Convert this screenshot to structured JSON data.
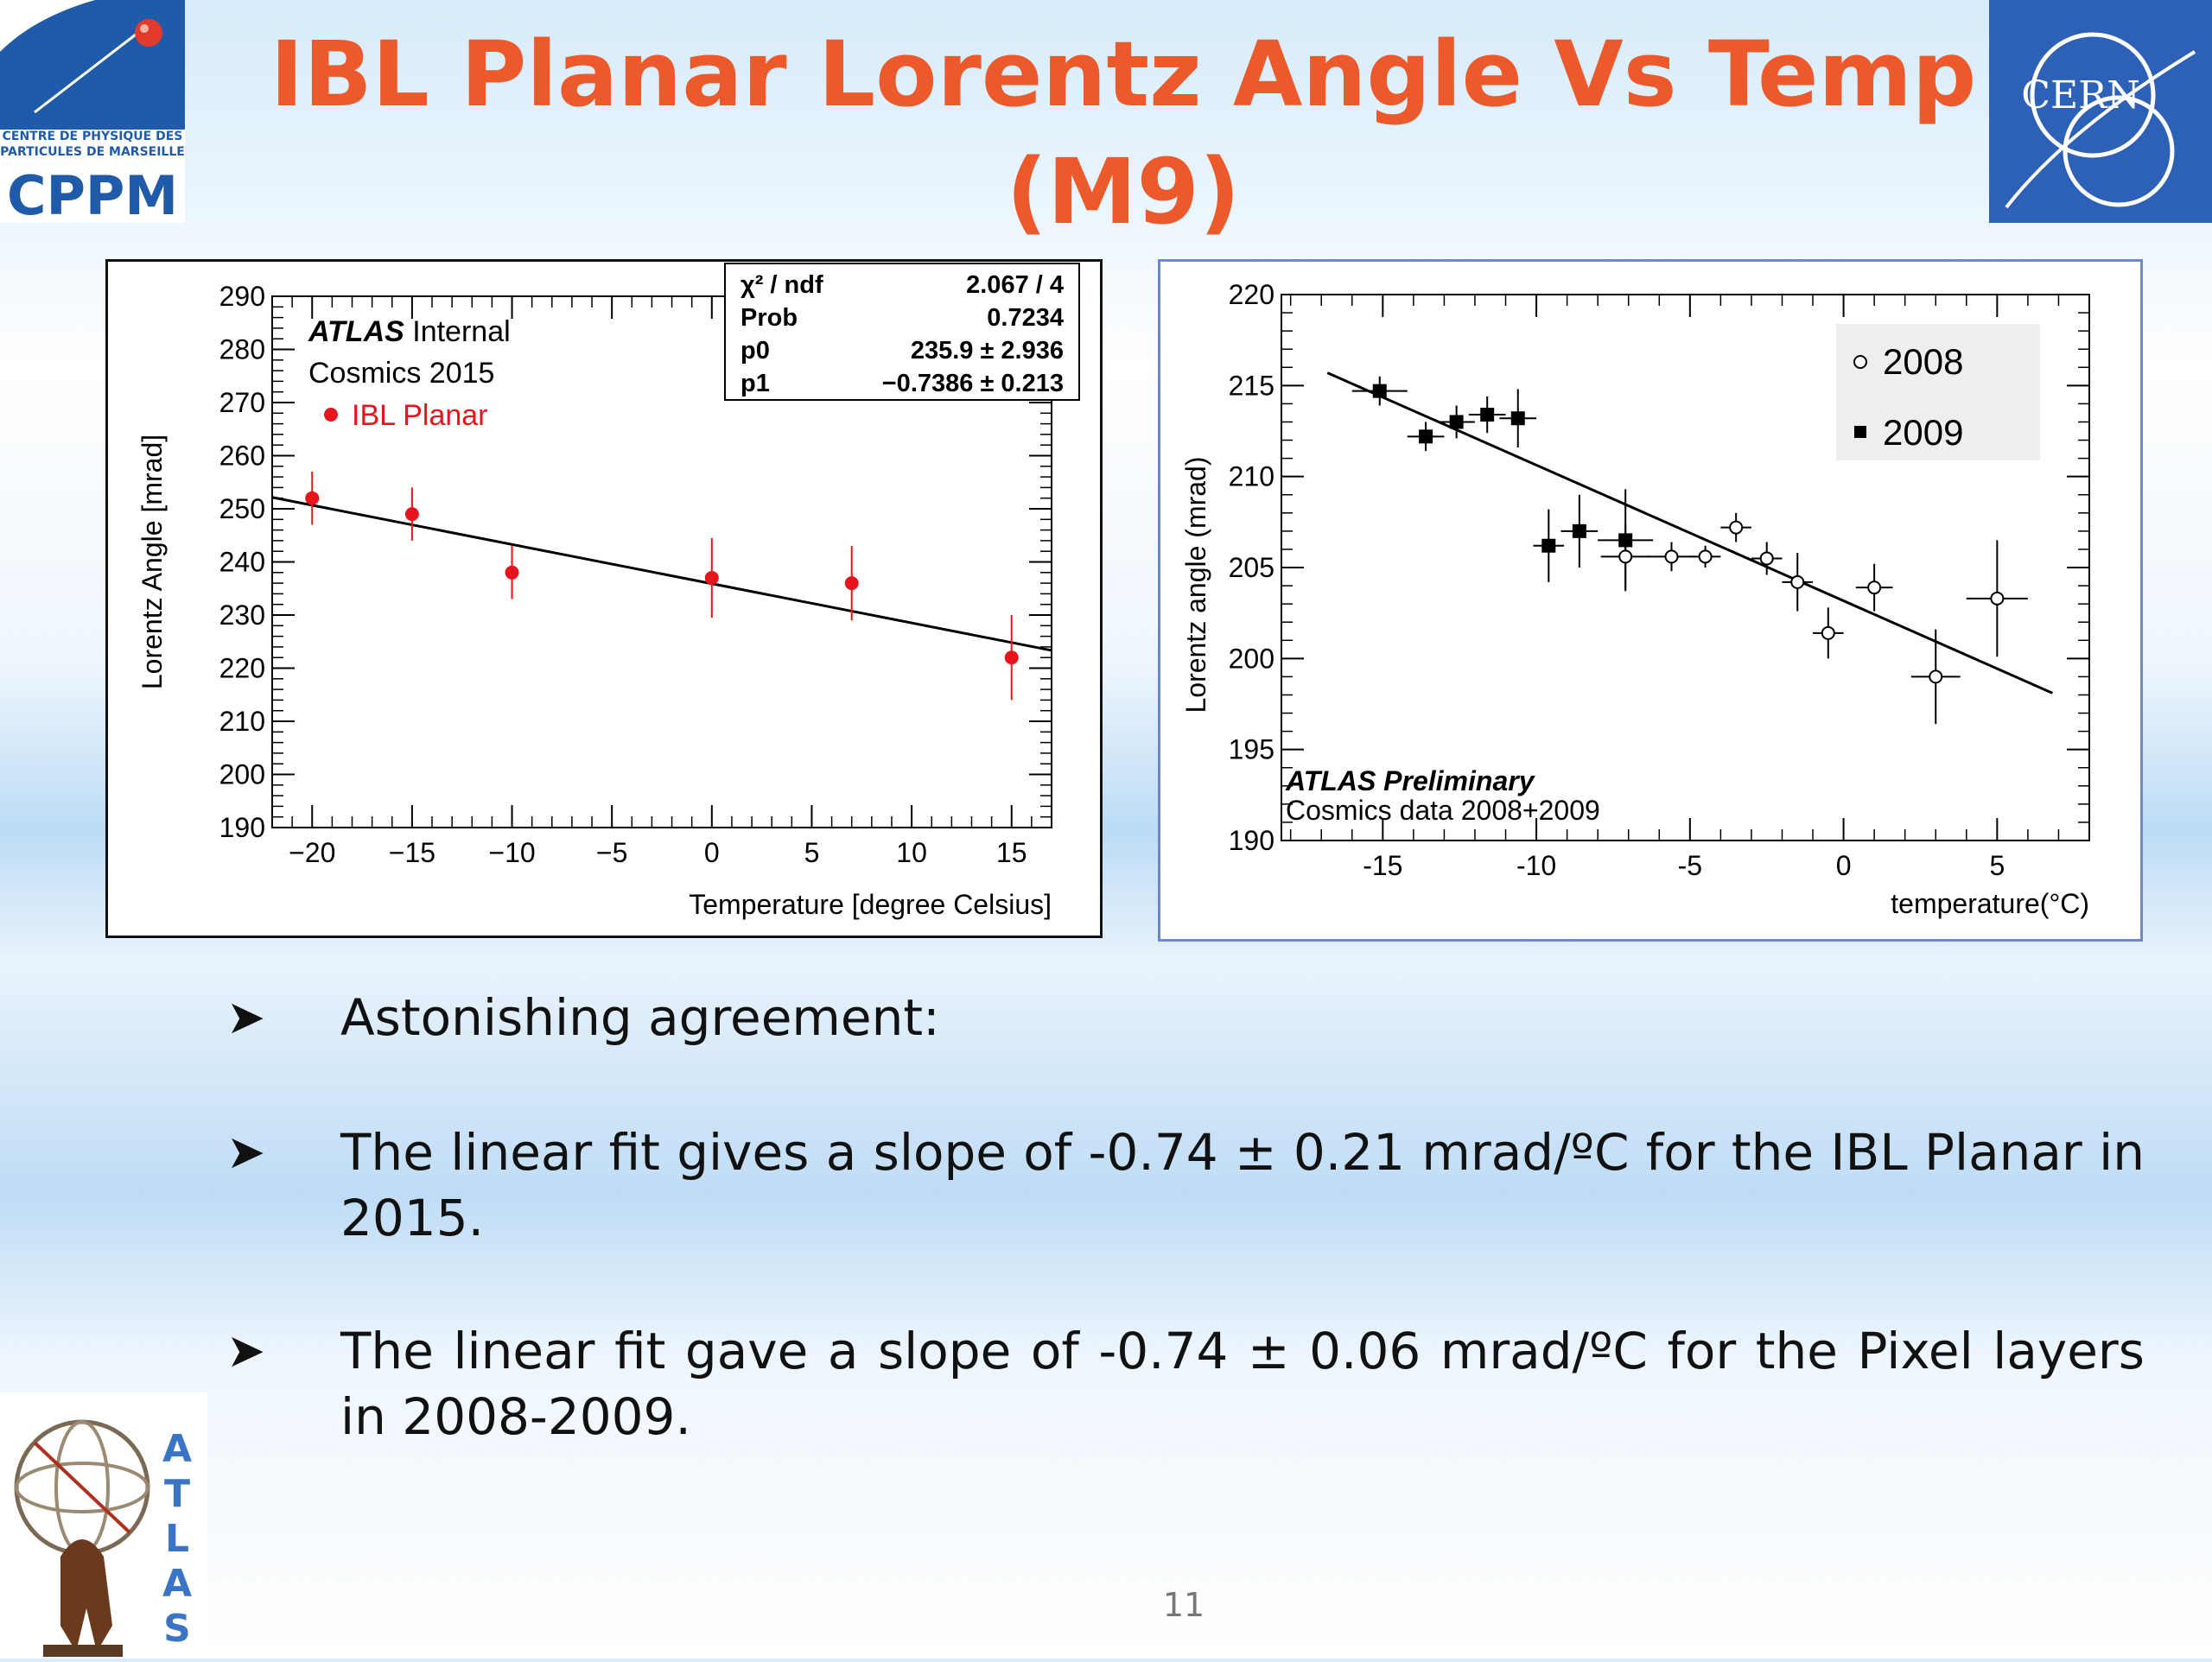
{
  "slide": {
    "title": "IBL Planar Lorentz Angle Vs Temp (M9)",
    "page_number": "11"
  },
  "logos": {
    "cppm_line1": "CENTRE DE PHYSIQUE DES",
    "cppm_line2": "PARTICULES DE MARSEILLE",
    "cppm_name": "CPPM",
    "cern_name": "CERN",
    "atlas_name": "ATLAS",
    "colors": {
      "cppm_blue": "#1f5ba8",
      "cern_blue": "#2d60b7",
      "atlas_blue": "#3b74c4",
      "title_orange": "#ec5a2c"
    }
  },
  "bullets": [
    "Astonishing agreement:",
    "The linear fit gives a slope of -0.74 ± 0.21 mrad/ºC for the IBL Planar in 2015.",
    "The linear fit gave a slope of -0.74 ± 0.06 mrad/ºC for the Pixel layers in 2008-2009."
  ],
  "chart_data": [
    {
      "type": "scatter",
      "xlabel": "Temperature [degree Celsius]",
      "ylabel": "Lorentz Angle [mrad]",
      "xlim": [
        -22,
        17
      ],
      "ylim": [
        190,
        290
      ],
      "xticks": [
        -20,
        -15,
        -10,
        -5,
        0,
        5,
        10,
        15
      ],
      "xtick_labels": [
        "−20",
        "−15",
        "−10",
        "−5",
        "0",
        "5",
        "10",
        "15"
      ],
      "yticks": [
        190,
        200,
        210,
        220,
        230,
        240,
        250,
        260,
        270,
        280,
        290
      ],
      "annotations": {
        "experiment": "ATLAS",
        "status": "Internal",
        "dataset": "Cosmics 2015"
      },
      "legend": [
        {
          "label": "IBL Planar",
          "marker": "filled-circle",
          "color": "#e8141c"
        }
      ],
      "fit_box": {
        "rows": [
          {
            "label": "χ² / ndf",
            "value": "2.067 / 4"
          },
          {
            "label": "Prob",
            "value": "0.7234"
          },
          {
            "label": "p0",
            "value": "235.9 ± 2.936"
          },
          {
            "label": "p1",
            "value": "−0.7386 ± 0.213"
          }
        ]
      },
      "fit_line": {
        "intercept": 235.9,
        "slope": -0.7386,
        "x_range": [
          -22,
          17
        ]
      },
      "series": [
        {
          "name": "IBL Planar",
          "color": "#e8141c",
          "points": [
            {
              "x": -20,
              "y": 252,
              "yerr": 5
            },
            {
              "x": -15,
              "y": 249,
              "yerr": 5
            },
            {
              "x": -10,
              "y": 238,
              "yerr": 5
            },
            {
              "x": 0,
              "y": 237,
              "yerr": 7.5
            },
            {
              "x": 7,
              "y": 236,
              "yerr": 7
            },
            {
              "x": 15,
              "y": 222,
              "yerr": 8
            }
          ]
        }
      ]
    },
    {
      "type": "scatter",
      "xlabel": "temperature(°C)",
      "ylabel": "Lorentz angle (mrad)",
      "xlim": [
        -18.3,
        8
      ],
      "ylim": [
        190,
        220
      ],
      "xticks": [
        -15,
        -10,
        -5,
        0,
        5
      ],
      "xtick_labels": [
        "-15",
        "-10",
        "-5",
        "0",
        "5"
      ],
      "yticks": [
        190,
        195,
        200,
        205,
        210,
        215,
        220
      ],
      "annotations": {
        "experiment": "ATLAS Preliminary",
        "dataset": "Cosmics data 2008+2009"
      },
      "legend": [
        {
          "label": "2008",
          "marker": "open-circle"
        },
        {
          "label": "2009",
          "marker": "filled-square"
        }
      ],
      "fit_line": {
        "x1": -16.8,
        "y1": 215.7,
        "x2": 6.8,
        "y2": 198.1
      },
      "series": [
        {
          "name": "2009",
          "marker": "filled-square",
          "points": [
            {
              "x": -15.1,
              "y": 214.7,
              "xerr": 0.9,
              "yerr": 0.8
            },
            {
              "x": -13.6,
              "y": 212.2,
              "xerr": 0.6,
              "yerr": 0.8
            },
            {
              "x": -12.6,
              "y": 213.0,
              "xerr": 0.6,
              "yerr": 0.9
            },
            {
              "x": -11.6,
              "y": 213.4,
              "xerr": 0.6,
              "yerr": 1.0
            },
            {
              "x": -10.6,
              "y": 213.2,
              "xerr": 0.6,
              "yerr": 1.6
            },
            {
              "x": -9.6,
              "y": 206.2,
              "xerr": 0.5,
              "yerr": 2.0
            },
            {
              "x": -8.6,
              "y": 207.0,
              "xerr": 0.6,
              "yerr": 2.0
            },
            {
              "x": -7.1,
              "y": 206.5,
              "xerr": 0.9,
              "yerr": 2.8
            }
          ]
        },
        {
          "name": "2008",
          "marker": "open-circle",
          "points": [
            {
              "x": -7.1,
              "y": 205.6,
              "xerr": 0.8,
              "yerr": 1.8
            },
            {
              "x": -5.6,
              "y": 205.6,
              "xerr": 0.8,
              "yerr": 0.8
            },
            {
              "x": -4.5,
              "y": 205.6,
              "xerr": 0.5,
              "yerr": 0.6
            },
            {
              "x": -3.5,
              "y": 207.2,
              "xerr": 0.5,
              "yerr": 0.8
            },
            {
              "x": -2.5,
              "y": 205.5,
              "xerr": 0.5,
              "yerr": 0.9
            },
            {
              "x": -1.5,
              "y": 204.2,
              "xerr": 0.5,
              "yerr": 1.6
            },
            {
              "x": -0.5,
              "y": 201.4,
              "xerr": 0.5,
              "yerr": 1.4
            },
            {
              "x": 1.0,
              "y": 203.9,
              "xerr": 0.6,
              "yerr": 1.3
            },
            {
              "x": 3.0,
              "y": 199.0,
              "xerr": 0.8,
              "yerr": 2.6
            },
            {
              "x": 5.0,
              "y": 203.3,
              "xerr": 1.0,
              "yerr": 3.2
            }
          ]
        }
      ]
    }
  ]
}
